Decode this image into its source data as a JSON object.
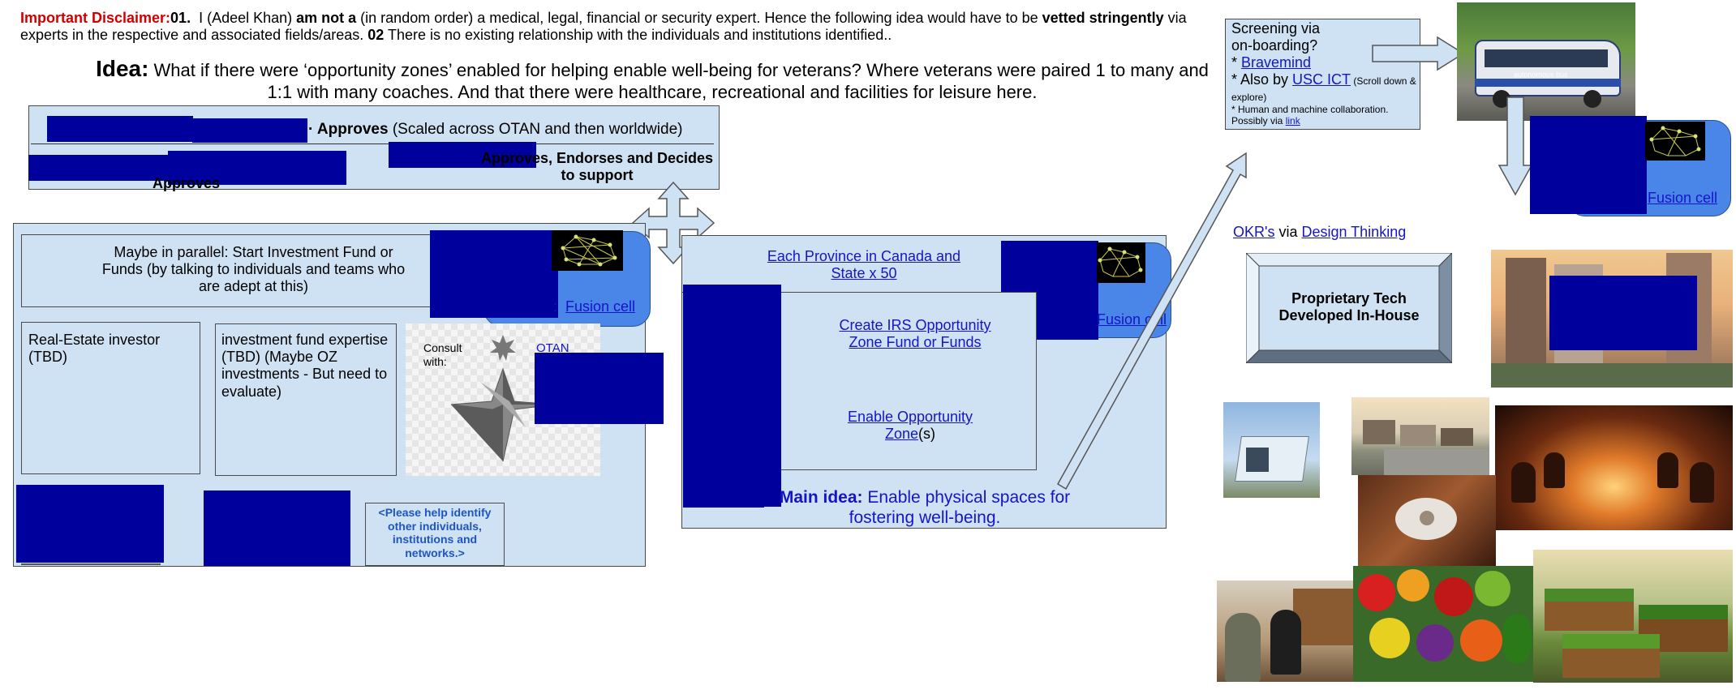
{
  "disclaimer": {
    "label": "Important Disclaimer:",
    "n1": "01.",
    "part1": "  I (Adeel Khan) ",
    "bold1": "am not a",
    "part2": " (in random order) a medical, legal, financial or security expert. Hence the following idea would have to be ",
    "bold2": "vetted stringently",
    "part3": " via experts in the respective and associated fields/areas. ",
    "n2": "02",
    "part4": " There is no existing relationship with the individuals and institutions identified.."
  },
  "idea": {
    "label": "Idea:",
    "text": " What if there were ‘opportunity zones’ enabled for helping enable well-being for veterans? Where veterans were paired 1 to many and 1:1 with many coaches. And that there were healthcare, recreational and facilities for leisure here."
  },
  "approvals": {
    "row1_bold": "Approves",
    "row1_rest": " (Scaled across OTAN and then worldwide)",
    "row2_bold": "Approves, Endorses and Decides to support",
    "row2_left": "Approves"
  },
  "left_panel": {
    "parallel_text": "Maybe in parallel: Start Investment Fund or Funds (by talking to individuals and teams who are adept at this)",
    "fusion_link": "Fusion cell",
    "real_estate": "Real-Estate investor (TBD)",
    "investment": "investment fund expertise (TBD) (Maybe OZ investments - But need to evaluate)",
    "consult": "Consult with:",
    "otan": "OTAN",
    "help_text": "<Please help identify other individuals, institutions and networks.>"
  },
  "middle_panel": {
    "province_link": "Each Province in Canada and State x 50",
    "fusion_link": "Fusion cell",
    "fusion_prefix": "F",
    "irs_link": "Create IRS Opportunity Zone Fund or Funds",
    "enable_link": "Enable Opportunity Zone",
    "enable_suffix": "(s)",
    "main_label": "Main idea:",
    "main_text": " Enable physical spaces for fostering well-being."
  },
  "right_panel": {
    "screening_line1": "Screening via",
    "screening_line2": "on-boarding?",
    "star1": "* ",
    "bravemind": "Bravemind",
    "star2": "* Also by ",
    "usc": "USC ICT",
    "scroll": " (Scroll down & explore)",
    "human": "* Human and machine collaboration.",
    "possibly": "Possibly via ",
    "link": "link",
    "fusion_link": "Fusion cell",
    "okr": "OKR's",
    "via": " via ",
    "design": "Design Thinking",
    "proprietary": "Proprietary Tech Developed In-House"
  },
  "photos": {
    "bus_label": "autonomous bus"
  },
  "colors": {
    "panel": "#cfe2f3",
    "redaction": "#00009c",
    "fusion": "#4a86e8",
    "link": "#1515c8",
    "disclaimer_red": "#d00000"
  }
}
